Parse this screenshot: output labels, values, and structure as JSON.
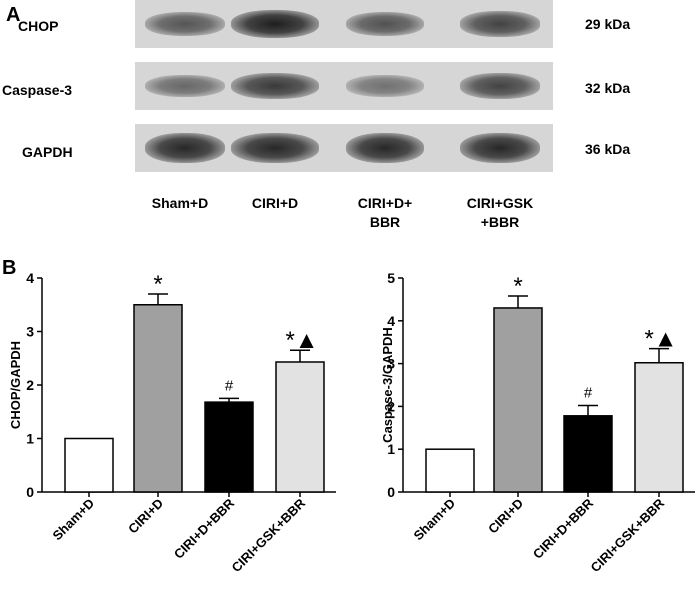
{
  "panel_a": {
    "letter": "A",
    "rows": [
      {
        "label": "CHOP",
        "kda": "29 kDa",
        "intensity": [
          0.7,
          1.0,
          0.72,
          0.8
        ]
      },
      {
        "label": "Caspase-3",
        "kda": "32 kDa",
        "intensity": [
          0.6,
          0.85,
          0.55,
          0.8
        ]
      },
      {
        "label": "GAPDH",
        "kda": "36 kDa",
        "intensity": [
          0.95,
          0.95,
          0.95,
          0.95
        ]
      }
    ],
    "lanes": [
      "Sham+D",
      "CIRI+D",
      "CIRI+D+\nBBR",
      "CIRI+GSK\n+BBR"
    ]
  },
  "panel_b": {
    "letter": "B"
  },
  "chart_data": [
    {
      "type": "bar",
      "categories": [
        "Sham+D",
        "CIRI+D",
        "CIRI+D+BBR",
        "CIRI+GSK+BBR"
      ],
      "values": [
        1.0,
        3.5,
        1.68,
        2.43
      ],
      "errors": [
        0,
        0.2,
        0.07,
        0.22
      ],
      "annotations": [
        "",
        "*",
        "#",
        "*▲"
      ],
      "colors": [
        "#ffffff",
        "#a0a0a0",
        "#000000",
        "#e2e2e2"
      ],
      "ylabel": "CHOP/GAPDH",
      "ylim": [
        0,
        4
      ],
      "yticks": [
        "0",
        "1",
        "2",
        "3",
        "4"
      ]
    },
    {
      "type": "bar",
      "categories": [
        "Sham+D",
        "CIRI+D",
        "CIRI+D+BBR",
        "CIRI+GSK+BBR"
      ],
      "values": [
        1.0,
        4.3,
        1.78,
        3.02
      ],
      "errors": [
        0,
        0.28,
        0.24,
        0.33
      ],
      "annotations": [
        "",
        "*",
        "#",
        "*▲"
      ],
      "colors": [
        "#ffffff",
        "#a0a0a0",
        "#000000",
        "#e2e2e2"
      ],
      "ylabel": "Caspase-3/GAPDH",
      "ylim": [
        0,
        5
      ],
      "yticks": [
        "0",
        "1",
        "2",
        "3",
        "4",
        "5"
      ]
    }
  ]
}
